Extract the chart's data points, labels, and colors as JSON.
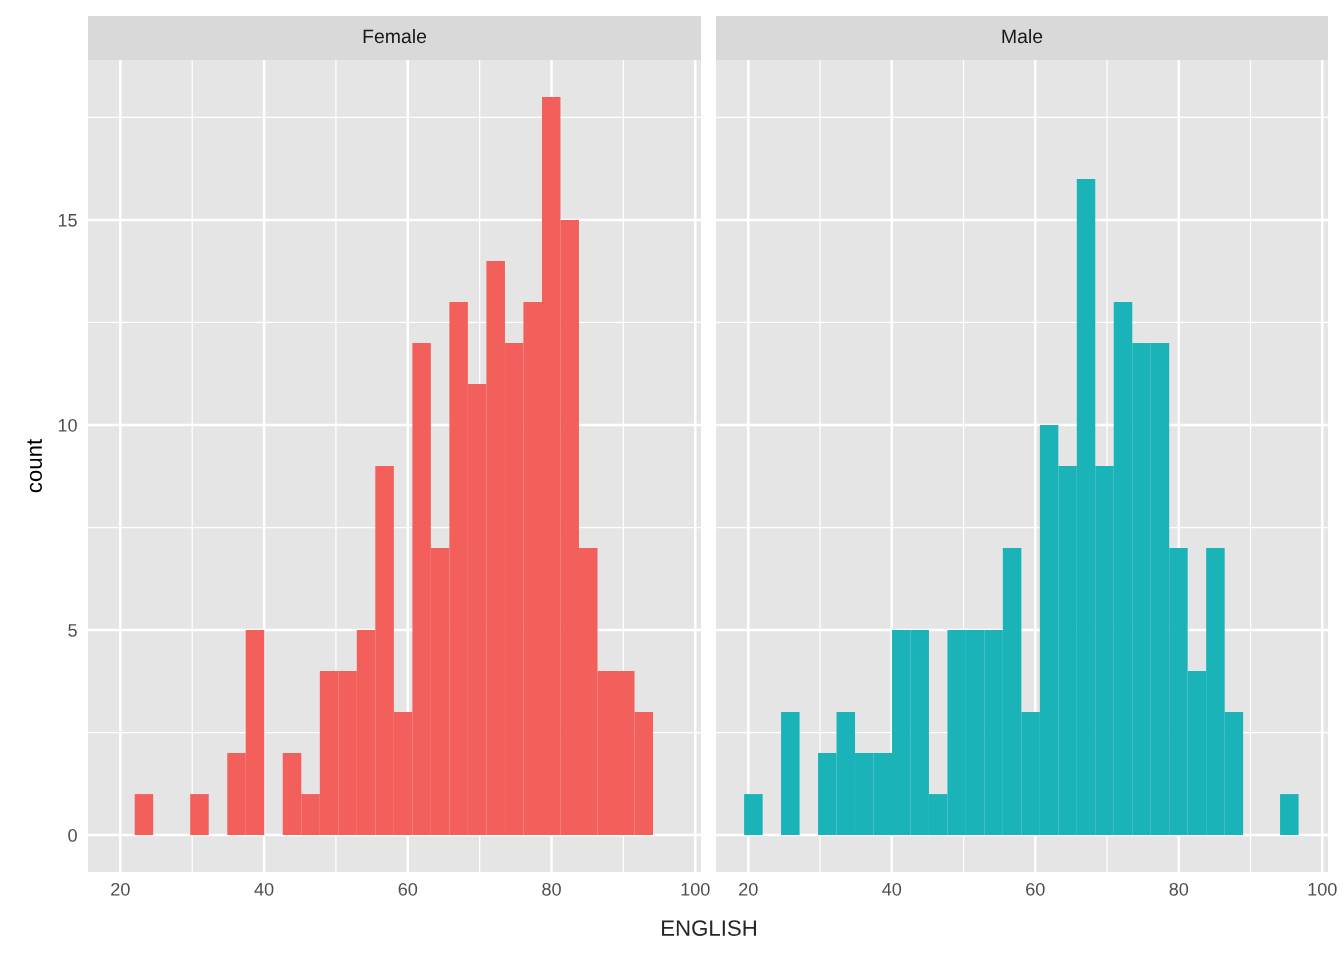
{
  "chart_data": [
    {
      "type": "histogram",
      "title": "Female",
      "xlabel": "ENGLISH",
      "ylabel": "count",
      "color": "#f35f5a",
      "bins": [
        19.42,
        22.0,
        24.57,
        27.15,
        29.72,
        32.3,
        34.88,
        37.45,
        40.03,
        42.6,
        45.18,
        47.76,
        50.33,
        52.91,
        55.48,
        58.06,
        60.64,
        63.21,
        65.79,
        68.36,
        70.94,
        73.52,
        76.09,
        78.67,
        81.24,
        83.82,
        86.4,
        88.97,
        91.55,
        94.12,
        96.7
      ],
      "values": [
        0,
        1,
        0,
        0,
        1,
        0,
        2,
        5,
        0,
        2,
        1,
        4,
        4,
        5,
        9,
        3,
        12,
        7,
        13,
        11,
        14,
        12,
        13,
        18,
        15,
        7,
        4,
        4,
        3,
        0
      ],
      "xlim": [
        15.5,
        100.8
      ],
      "ylim": [
        -0.9,
        18.9
      ],
      "xticks": [
        20,
        40,
        60,
        80,
        100
      ],
      "yticks": [
        0,
        5,
        10,
        15
      ],
      "grid": true
    },
    {
      "type": "histogram",
      "title": "Male",
      "color": "#19b3b8",
      "bins": [
        19.42,
        22.0,
        24.57,
        27.15,
        29.72,
        32.3,
        34.88,
        37.45,
        40.03,
        42.6,
        45.18,
        47.76,
        50.33,
        52.91,
        55.48,
        58.06,
        60.64,
        63.21,
        65.79,
        68.36,
        70.94,
        73.52,
        76.09,
        78.67,
        81.24,
        83.82,
        86.4,
        88.97,
        91.55,
        94.12,
        96.7
      ],
      "values": [
        1,
        0,
        3,
        0,
        2,
        3,
        2,
        2,
        5,
        5,
        1,
        5,
        5,
        5,
        7,
        3,
        10,
        9,
        16,
        9,
        13,
        12,
        12,
        7,
        4,
        7,
        3,
        0,
        0,
        1
      ],
      "xlim": [
        15.5,
        100.8
      ],
      "ylim": [
        -0.9,
        18.9
      ],
      "xticks": [
        20,
        40,
        60,
        80,
        100
      ],
      "yticks": [
        0,
        5,
        10,
        15
      ],
      "grid": true,
      "tick_labels": "x"
    }
  ]
}
